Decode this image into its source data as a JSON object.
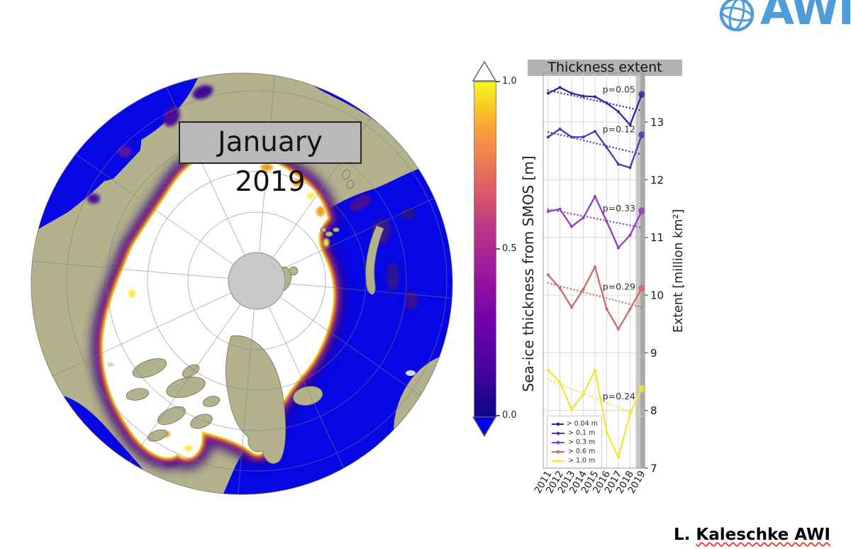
{
  "header": {
    "logo_text": "AWI"
  },
  "map": {
    "date_label": "January 2019",
    "colors": {
      "ocean": "#0707e6",
      "land": "#b4b28c",
      "ice": "#ffffff",
      "pole_hole": "#c9c9c9"
    }
  },
  "colorbar": {
    "title": "Sea-ice thickness from SMOS [m]",
    "tick_labels": [
      "1.0",
      "0.5",
      "0.0"
    ],
    "colormap": "plasma",
    "under_color": "#0404f2",
    "over_color": "#ffffff"
  },
  "chart_data": {
    "type": "line",
    "title": "Thickness extent",
    "ylabel": "Extent [million km²]",
    "x": [
      2011,
      2012,
      2013,
      2014,
      2015,
      2016,
      2017,
      2018,
      2019
    ],
    "ylim": [
      7,
      13.85
    ],
    "yticks": [
      7,
      8,
      9,
      10,
      11,
      12,
      13
    ],
    "grid": true,
    "legend_position": "lower left",
    "highlight_year": 2019,
    "series": [
      {
        "name": "> 0.04 m",
        "color": "#2e2b9e",
        "p_label": "p=0.05",
        "p_label_y": 13.56,
        "trend": [
          13.55,
          13.2
        ],
        "values": [
          13.5,
          13.6,
          13.5,
          13.45,
          13.44,
          13.33,
          13.18,
          12.95,
          13.48
        ]
      },
      {
        "name": "> 0.1 m",
        "color": "#4c3ab5",
        "p_label": "p=0.12",
        "p_label_y": 12.87,
        "trend": [
          12.83,
          12.44
        ],
        "values": [
          12.74,
          12.88,
          12.74,
          12.74,
          12.84,
          12.56,
          12.27,
          12.21,
          12.78
        ]
      },
      {
        "name": "> 0.3 m",
        "color": "#8e3fc0",
        "p_label": "p=0.33",
        "p_label_y": 11.5,
        "trend": [
          11.49,
          11.17
        ],
        "values": [
          11.45,
          11.49,
          11.19,
          11.34,
          11.71,
          11.28,
          10.82,
          11.04,
          11.46
        ]
      },
      {
        "name": "> 0.6 m",
        "color": "#cd6a66",
        "p_label": "p=0.29",
        "p_label_y": 10.14,
        "trend": [
          10.21,
          9.79
        ],
        "values": [
          10.35,
          10.12,
          9.79,
          10.1,
          10.49,
          9.76,
          9.41,
          9.76,
          10.12
        ]
      },
      {
        "name": "> 1.0 m",
        "color": "#efe73b",
        "p_label": "p=0.24",
        "p_label_y": 8.24,
        "trend": [
          8.53,
          7.9
        ],
        "values": [
          8.7,
          8.49,
          8.02,
          8.28,
          8.7,
          7.63,
          7.19,
          7.95,
          8.38
        ]
      }
    ]
  },
  "credit": {
    "prefix": "L.",
    "name": "Kaleschke AWI"
  }
}
